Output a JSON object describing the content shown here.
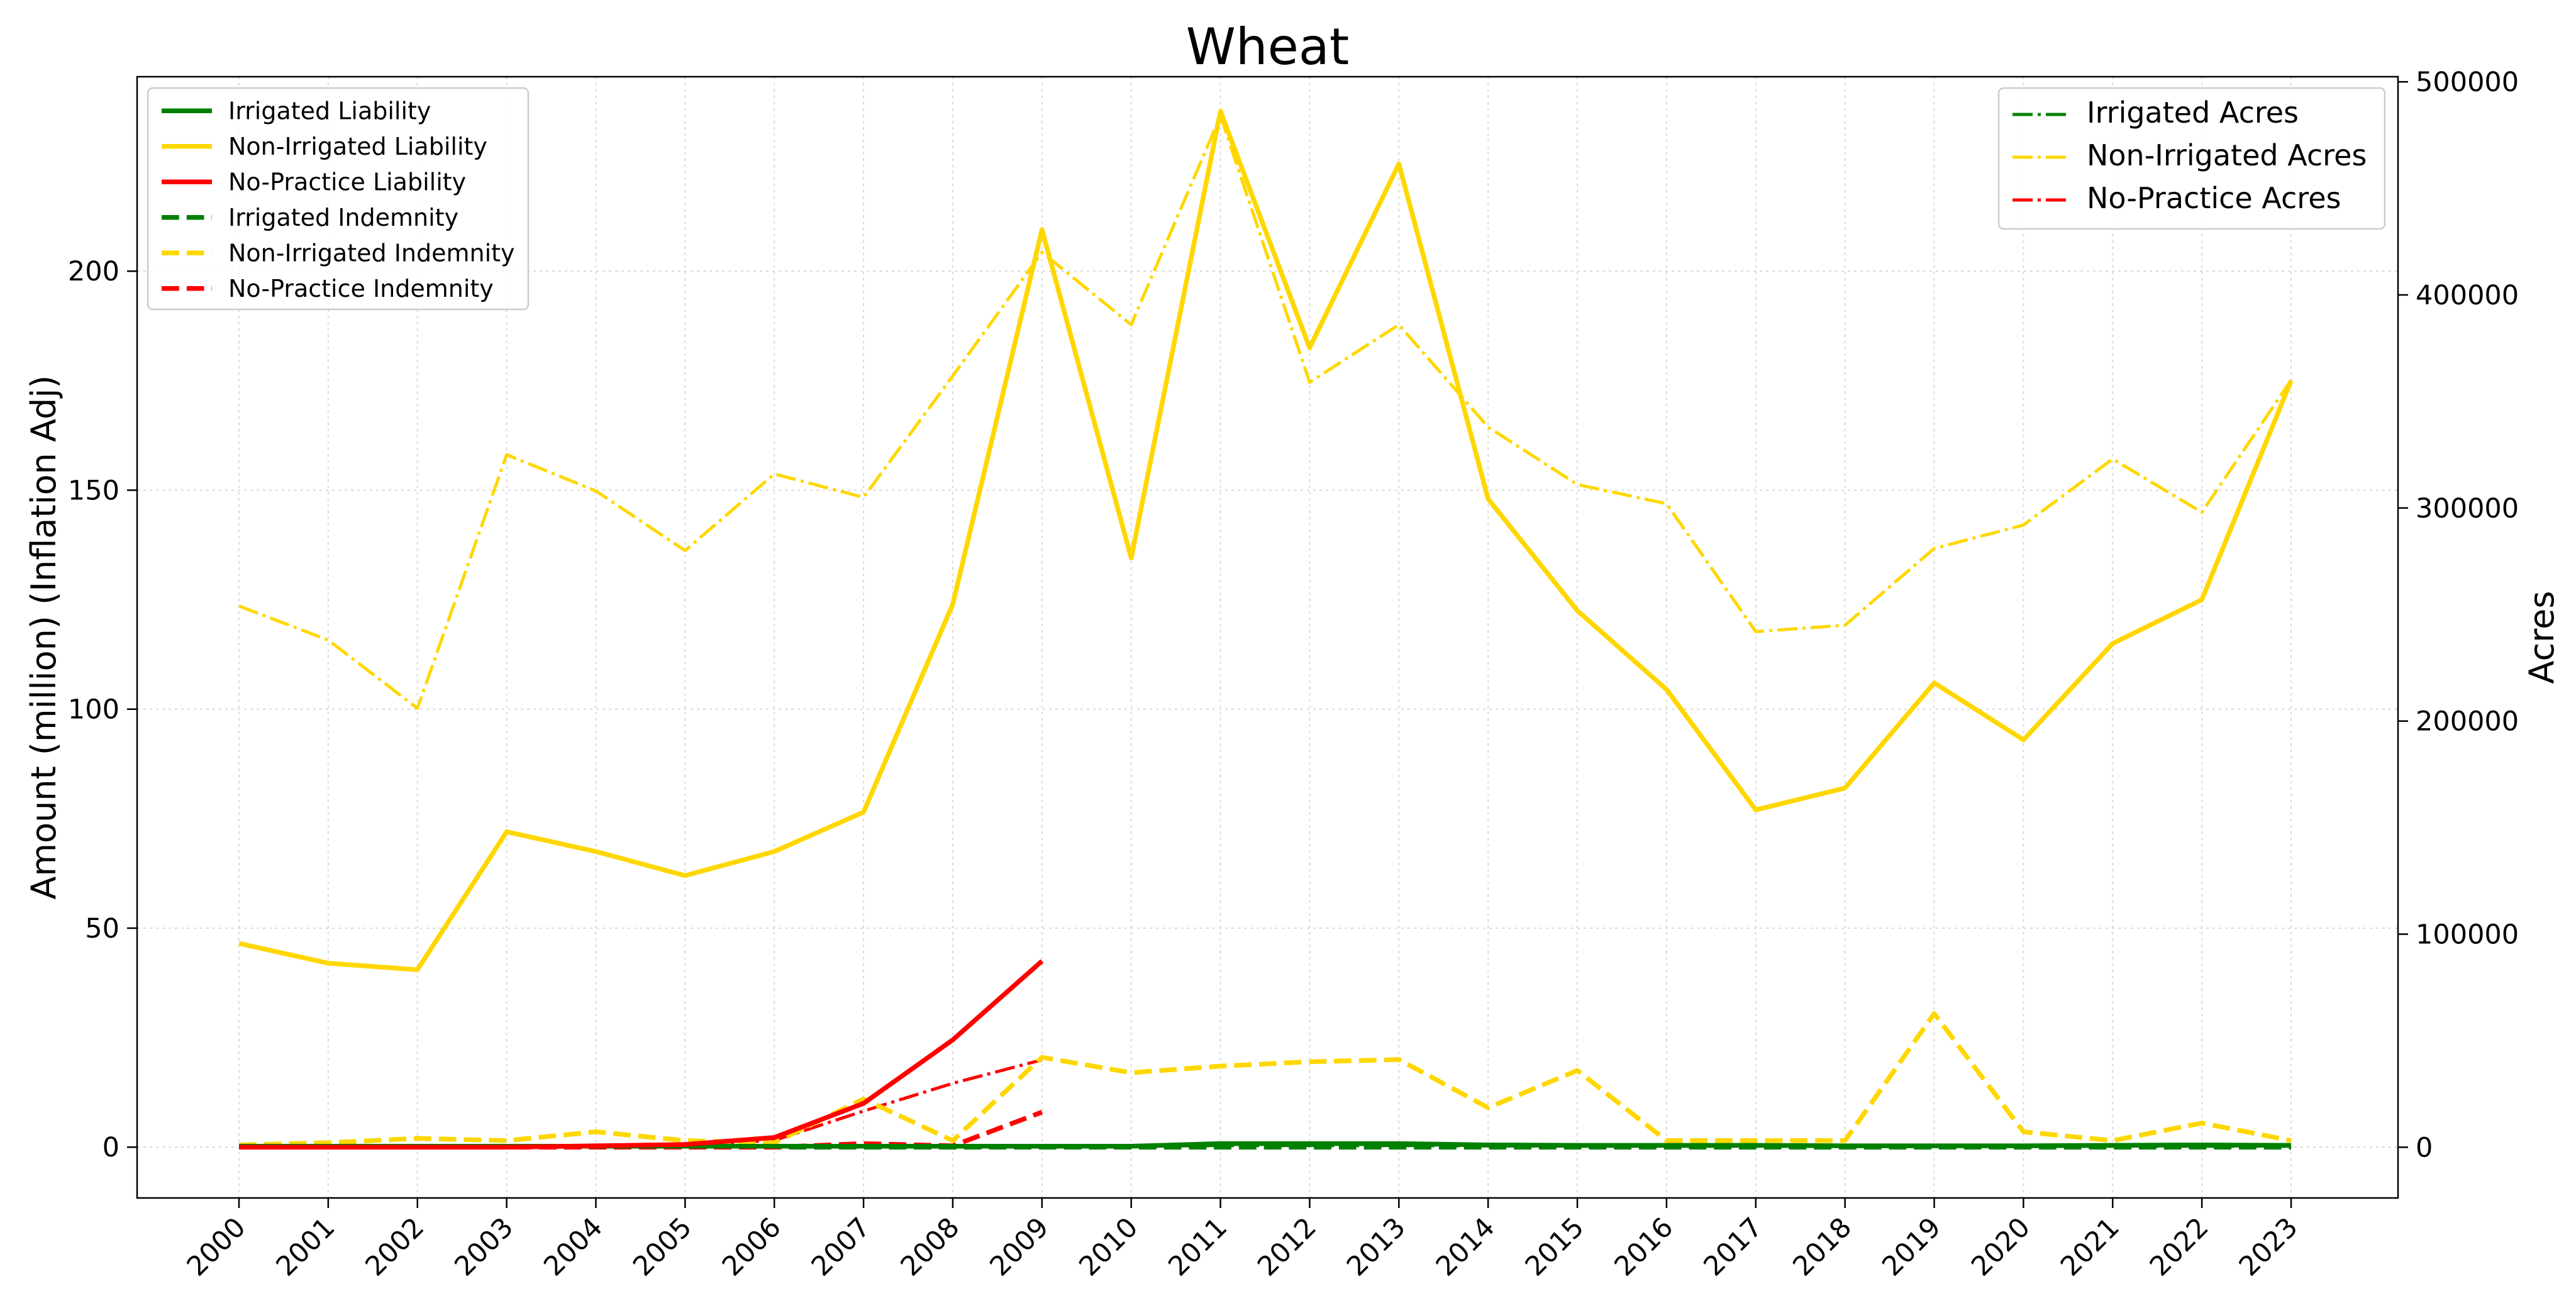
{
  "chart_data": {
    "type": "line",
    "title": "Wheat",
    "xlabel": "",
    "ylabel": "Amount (million) (Inflation Adj)",
    "y2label": "Acres",
    "categories": [
      "2000",
      "2001",
      "2002",
      "2003",
      "2004",
      "2005",
      "2006",
      "2007",
      "2008",
      "2009",
      "2010",
      "2011",
      "2012",
      "2013",
      "2014",
      "2015",
      "2016",
      "2017",
      "2018",
      "2019",
      "2020",
      "2021",
      "2022",
      "2023"
    ],
    "ylim": [
      -11.6,
      244.4
    ],
    "y2lim": [
      -23800,
      502400
    ],
    "yticks": [
      0,
      50,
      100,
      150,
      200
    ],
    "y2ticks": [
      0,
      100000,
      200000,
      300000,
      400000,
      500000
    ],
    "grid": true,
    "legend_left_position": "top-left",
    "legend_right_position": "top-right",
    "series": [
      {
        "name": "Irrigated Liability",
        "axis": "left",
        "style": "solid",
        "color": "#008000",
        "values": [
          0.2,
          0.2,
          0.2,
          0.2,
          0.2,
          0.2,
          0.2,
          0.2,
          0.2,
          0.2,
          0.2,
          0.8,
          0.8,
          0.8,
          0.5,
          0.4,
          0.4,
          0.4,
          0.3,
          0.3,
          0.3,
          0.4,
          0.5,
          0.4
        ]
      },
      {
        "name": "Non-Irrigated Liability",
        "axis": "left",
        "style": "solid",
        "color": "#FFD700",
        "values": [
          46.5,
          42,
          40.5,
          72,
          67.5,
          62,
          67.5,
          76.5,
          124,
          209.5,
          134.5,
          236.5,
          182.5,
          224.5,
          148,
          122.5,
          104.5,
          77,
          82,
          106,
          93,
          115,
          125,
          175
        ]
      },
      {
        "name": "No-Practice Liability",
        "axis": "left",
        "style": "solid",
        "color": "#FF0000",
        "values": [
          0,
          0,
          0,
          0,
          0.3,
          0.6,
          2.2,
          10,
          24.5,
          42.5,
          null,
          null,
          null,
          null,
          null,
          null,
          null,
          null,
          null,
          null,
          null,
          null,
          null,
          null
        ]
      },
      {
        "name": "Irrigated Indemnity",
        "axis": "left",
        "style": "dashed",
        "color": "#008000",
        "values": [
          0,
          0,
          0,
          0,
          0,
          0,
          0,
          0,
          0,
          0,
          0,
          0,
          0,
          0,
          0,
          0,
          0,
          0,
          0,
          0,
          0,
          0,
          0,
          0
        ]
      },
      {
        "name": "Non-Irrigated Indemnity",
        "axis": "left",
        "style": "dashed",
        "color": "#FFD700",
        "values": [
          0.5,
          1,
          2,
          1.5,
          3.5,
          1.5,
          1,
          11,
          1.5,
          20.5,
          17,
          18.5,
          19.5,
          20,
          9,
          17.5,
          1.5,
          1.5,
          1.5,
          30.5,
          3.5,
          1.5,
          5.5,
          1.5
        ]
      },
      {
        "name": "No-Practice Indemnity",
        "axis": "left",
        "style": "dashed",
        "color": "#FF0000",
        "values": [
          0,
          0,
          0,
          0,
          0,
          0,
          0,
          0.8,
          0.3,
          8,
          null,
          null,
          null,
          null,
          null,
          null,
          null,
          null,
          null,
          null,
          null,
          null,
          null,
          null
        ]
      },
      {
        "name": "Irrigated Acres",
        "axis": "right",
        "style": "dashdot",
        "color": "#008000",
        "values": [
          500,
          500,
          500,
          500,
          500,
          500,
          500,
          500,
          500,
          500,
          500,
          800,
          800,
          800,
          600,
          500,
          500,
          500,
          500,
          500,
          500,
          500,
          500,
          500
        ]
      },
      {
        "name": "Non-Irrigated Acres",
        "axis": "right",
        "style": "dashdot",
        "color": "#FFD700",
        "values": [
          254000,
          238000,
          206000,
          325000,
          308000,
          280000,
          316000,
          305000,
          362000,
          420000,
          386000,
          484000,
          359000,
          386000,
          338000,
          311000,
          302000,
          242000,
          245000,
          281000,
          292000,
          323000,
          298000,
          360000
        ]
      },
      {
        "name": "No-Practice Acres",
        "axis": "right",
        "style": "dashdot",
        "color": "#FF0000",
        "values": [
          0,
          0,
          0,
          200,
          600,
          1200,
          3200,
          17000,
          30000,
          41000,
          null,
          null,
          null,
          null,
          null,
          null,
          null,
          null,
          null,
          null,
          null,
          null,
          null,
          null
        ]
      }
    ],
    "legend_left": [
      "Irrigated Liability",
      "Non-Irrigated Liability",
      "No-Practice Liability",
      "Irrigated Indemnity",
      "Non-Irrigated Indemnity",
      "No-Practice Indemnity"
    ],
    "legend_right": [
      "Irrigated Acres",
      "Non-Irrigated Acres",
      "No-Practice Acres"
    ]
  }
}
